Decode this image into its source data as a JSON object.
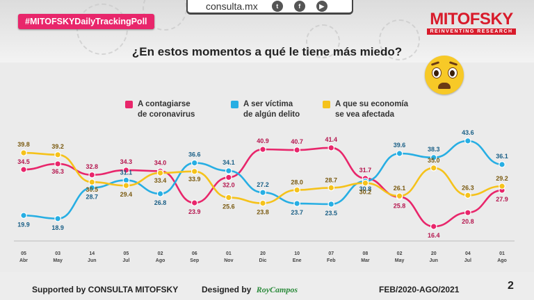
{
  "header": {
    "hashtag": "#MITOFSKYDailyTrackingPoll",
    "site": "consulta.mx",
    "brand_name": "MITOFSKY",
    "brand_tagline": "REINVENTING RESEARCH",
    "question": "¿En estos momentos a qué le tiene más miedo?",
    "social_icons": [
      "twitter-icon",
      "facebook-icon",
      "youtube-icon"
    ]
  },
  "legend": [
    {
      "line1": "A contagiarse",
      "line2": "de coronavirus",
      "color": "#e8266b"
    },
    {
      "line1": "A ser víctima",
      "line2": "de algún delito",
      "color": "#27aee3"
    },
    {
      "line1": "A que su economía",
      "line2": "se vea afectada",
      "color": "#f5c21b"
    }
  ],
  "chart_data": {
    "type": "line",
    "categories": [
      {
        "day": "05",
        "month": "Abr"
      },
      {
        "day": "03",
        "month": "May"
      },
      {
        "day": "14",
        "month": "Jun"
      },
      {
        "day": "05",
        "month": "Jul"
      },
      {
        "day": "02",
        "month": "Ago"
      },
      {
        "day": "06",
        "month": "Sep"
      },
      {
        "day": "01",
        "month": "Nov"
      },
      {
        "day": "20",
        "month": "Dic"
      },
      {
        "day": "10",
        "month": "Ene"
      },
      {
        "day": "07",
        "month": "Feb"
      },
      {
        "day": "08",
        "month": "Mar"
      },
      {
        "day": "02",
        "month": "May"
      },
      {
        "day": "20",
        "month": "Jun"
      },
      {
        "day": "04",
        "month": "Jul"
      },
      {
        "day": "01",
        "month": "Ago"
      }
    ],
    "series": [
      {
        "name": "A contagiarse de coronavirus",
        "color": "#e8266b",
        "label_color": "#b5174f",
        "values": [
          34.5,
          36.3,
          32.8,
          34.3,
          34.0,
          23.9,
          32.0,
          40.9,
          40.7,
          41.4,
          31.7,
          25.8,
          16.4,
          20.8,
          27.9
        ]
      },
      {
        "name": "A ser víctima de algún delito",
        "color": "#27aee3",
        "label_color": "#1a5f86",
        "values": [
          19.9,
          18.9,
          28.7,
          31.1,
          26.8,
          36.6,
          34.1,
          27.2,
          23.7,
          23.5,
          30.8,
          39.6,
          38.3,
          43.6,
          36.1
        ]
      },
      {
        "name": "A que su economía se vea afectada",
        "color": "#f5c21b",
        "label_color": "#7a5a10",
        "values": [
          39.8,
          39.2,
          30.5,
          29.4,
          33.4,
          33.9,
          25.6,
          23.8,
          28.0,
          28.7,
          30.2,
          26.1,
          35.0,
          26.3,
          29.2
        ]
      }
    ],
    "xlabel": "",
    "ylabel": "",
    "ylim": [
      14,
      46
    ],
    "grid": false
  },
  "footer": {
    "supported": "Supported by  CONSULTA  MITOFSKY",
    "designed_label": "Designed by",
    "designed_name": "RoyCampos",
    "period": "FEB/2020-AGO/2021",
    "page": "2"
  }
}
